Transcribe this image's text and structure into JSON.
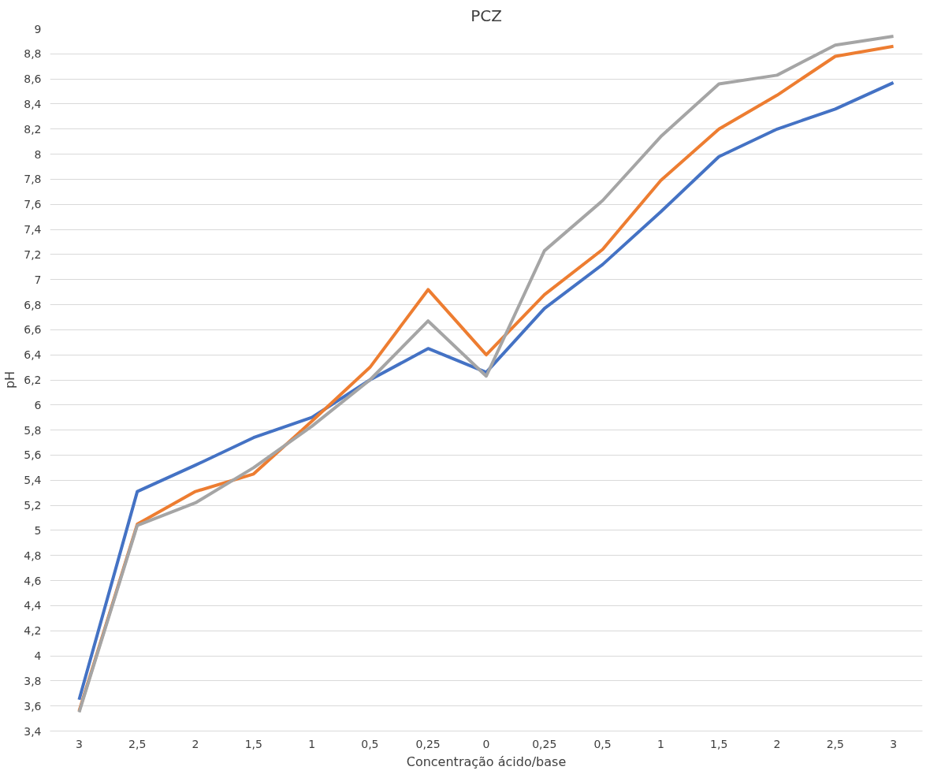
{
  "chart_data": {
    "type": "line",
    "title": "PCZ",
    "xlabel": "Concentração ácido/base",
    "ylabel": "pH",
    "categories": [
      "3",
      "2,5",
      "2",
      "1,5",
      "1",
      "0,5",
      "0,25",
      "0",
      "0,25",
      "0,5",
      "1",
      "1,5",
      "2",
      "2,5",
      "3"
    ],
    "series": [
      {
        "color": "#4472c4",
        "values": [
          3.65,
          5.31,
          5.52,
          5.74,
          5.9,
          6.2,
          6.45,
          6.26,
          6.77,
          7.12,
          7.54,
          7.98,
          8.2,
          8.36,
          8.57
        ]
      },
      {
        "color": "#ed7d31",
        "values": [
          3.56,
          5.05,
          5.31,
          5.45,
          5.87,
          6.3,
          6.92,
          6.4,
          6.88,
          7.24,
          7.79,
          8.2,
          8.47,
          8.78,
          8.86
        ]
      },
      {
        "color": "#a5a5a5",
        "values": [
          3.55,
          5.04,
          5.22,
          5.5,
          5.83,
          6.2,
          6.67,
          6.23,
          7.23,
          7.63,
          8.14,
          8.56,
          8.63,
          8.87,
          8.94
        ]
      }
    ],
    "ylim": [
      3.4,
      9
    ],
    "yticks": [
      {
        "value": 3.4,
        "label": "3,4"
      },
      {
        "value": 3.6,
        "label": "3,6"
      },
      {
        "value": 3.8,
        "label": "3,8"
      },
      4,
      {
        "value": 4.2,
        "label": "4,2"
      },
      {
        "value": 4.4,
        "label": "4,4"
      },
      {
        "value": 4.6,
        "label": "4,6"
      },
      {
        "value": 4.8,
        "label": "4,8"
      },
      5,
      {
        "value": 5.2,
        "label": "5,2"
      },
      {
        "value": 5.4,
        "label": "5,4"
      },
      {
        "value": 5.6,
        "label": "5,6"
      },
      {
        "value": 5.8,
        "label": "5,8"
      },
      6,
      {
        "value": 6.2,
        "label": "6,2"
      },
      {
        "value": 6.4,
        "label": "6,4"
      },
      {
        "value": 6.6,
        "label": "6,6"
      },
      {
        "value": 6.8,
        "label": "6,8"
      },
      7,
      {
        "value": 7.2,
        "label": "7,2"
      },
      {
        "value": 7.4,
        "label": "7,4"
      },
      {
        "value": 7.6,
        "label": "7,6"
      },
      {
        "value": 7.8,
        "label": "7,8"
      },
      8,
      {
        "value": 8.2,
        "label": "8,2"
      },
      {
        "value": 8.4,
        "label": "8,4"
      },
      {
        "value": 8.6,
        "label": "8,6"
      },
      {
        "value": 8.8,
        "label": "8,8"
      },
      9
    ],
    "grid": "y",
    "marker": "none",
    "line_style": "solid"
  }
}
